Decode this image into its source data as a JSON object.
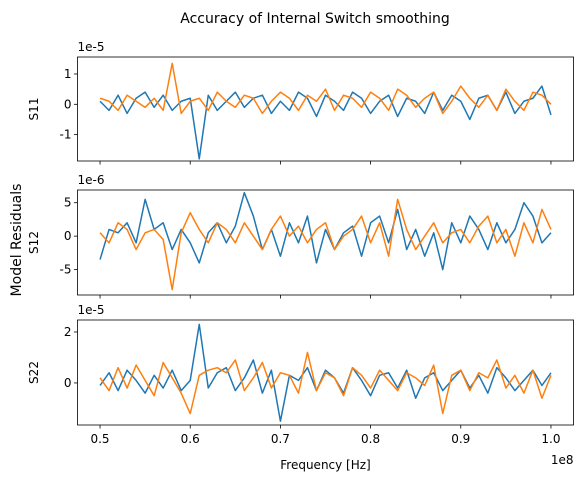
{
  "figure": {
    "title": "Accuracy of Internal Switch smoothing",
    "ylabel": "Model Residuals"
  },
  "chart_data": [
    {
      "type": "line",
      "ylabel": "S11",
      "offset_label": "1e-5",
      "x": [
        0.5,
        0.51,
        0.52,
        0.53,
        0.54,
        0.55,
        0.56,
        0.57,
        0.58,
        0.59,
        0.6,
        0.61,
        0.62,
        0.63,
        0.64,
        0.65,
        0.66,
        0.67,
        0.68,
        0.69,
        0.7,
        0.71,
        0.72,
        0.73,
        0.74,
        0.75,
        0.76,
        0.77,
        0.78,
        0.79,
        0.8,
        0.81,
        0.82,
        0.83,
        0.84,
        0.85,
        0.86,
        0.87,
        0.88,
        0.89,
        0.9,
        0.91,
        0.92,
        0.93,
        0.94,
        0.95,
        0.96,
        0.97,
        0.98,
        0.99,
        1
      ],
      "series": [
        {
          "color": "#1f77b4",
          "values": [
            0.1,
            -0.2,
            0.3,
            -0.3,
            0.2,
            0.4,
            -0.1,
            0.3,
            -0.2,
            0.1,
            0.2,
            -1.8,
            0.3,
            -0.2,
            0.1,
            0.4,
            -0.1,
            0.2,
            0.3,
            -0.3,
            0.1,
            -0.2,
            0.4,
            0.2,
            -0.4,
            0.3,
            0.1,
            -0.2,
            0.4,
            0.2,
            -0.3,
            0.1,
            0.3,
            -0.4,
            0.2,
            0.1,
            -0.3,
            0.4,
            -0.2,
            0.3,
            0.1,
            -0.5,
            0.2,
            0.3,
            -0.2,
            0.4,
            -0.3,
            0.1,
            0.2,
            0.6,
            -0.35
          ]
        },
        {
          "color": "#ff7f0e",
          "values": [
            0.2,
            0.1,
            -0.2,
            0.3,
            0.1,
            -0.1,
            0.2,
            -0.2,
            1.35,
            -0.3,
            0.1,
            0.2,
            -0.2,
            0.4,
            0.1,
            -0.1,
            0.3,
            0.2,
            -0.3,
            0.1,
            0.4,
            0.2,
            -0.2,
            0.3,
            0.1,
            0.5,
            -0.2,
            0.3,
            0.2,
            -0.1,
            0.4,
            0.2,
            -0.2,
            0.5,
            0.3,
            -0.1,
            0.2,
            0.4,
            -0.3,
            0.1,
            0.6,
            0.2,
            -0.1,
            0.3,
            -0.2,
            0.5,
            0.1,
            -0.2,
            0.4,
            0.3,
            0.0
          ]
        }
      ],
      "xlim": [
        0.475,
        1.025
      ],
      "xticks": [
        0.5,
        0.6,
        0.7,
        0.8,
        0.9,
        {
          "value": 1,
          "label": "1.0"
        }
      ],
      "ylim": [
        -1.87,
        1.56
      ],
      "yticks": [
        -1,
        0,
        1
      ]
    },
    {
      "type": "line",
      "ylabel": "S12",
      "offset_label": "1e-6",
      "x": [
        0.5,
        0.51,
        0.52,
        0.53,
        0.54,
        0.55,
        0.56,
        0.57,
        0.58,
        0.59,
        0.6,
        0.61,
        0.62,
        0.63,
        0.64,
        0.65,
        0.66,
        0.67,
        0.68,
        0.69,
        0.7,
        0.71,
        0.72,
        0.73,
        0.74,
        0.75,
        0.76,
        0.77,
        0.78,
        0.79,
        0.8,
        0.81,
        0.82,
        0.83,
        0.84,
        0.85,
        0.86,
        0.87,
        0.88,
        0.89,
        0.9,
        0.91,
        0.92,
        0.93,
        0.94,
        0.95,
        0.96,
        0.97,
        0.98,
        0.99,
        1
      ],
      "series": [
        {
          "color": "#1f77b4",
          "values": [
            -3.5,
            1,
            0.5,
            2,
            -1,
            5.5,
            1,
            2,
            -2,
            1,
            -1,
            -4,
            0.5,
            2,
            -1,
            1.5,
            6.5,
            3,
            -2,
            1,
            -3,
            2,
            -1,
            3,
            -4,
            1,
            -2,
            0.5,
            1.5,
            -3,
            2,
            3,
            -1,
            4,
            -2,
            1,
            -3,
            0.5,
            -5,
            2,
            -1,
            3,
            1,
            -2,
            2,
            -1,
            1,
            5,
            3,
            -1,
            0.5
          ]
        },
        {
          "color": "#ff7f0e",
          "values": [
            0.5,
            -1,
            2,
            1,
            -2,
            0.5,
            1,
            -0.5,
            -8,
            0.5,
            3.5,
            1,
            -1,
            2,
            1,
            -1,
            2,
            0,
            -2,
            1,
            3,
            0,
            1.5,
            -1,
            1,
            2,
            -2,
            0,
            1,
            3,
            -1,
            2,
            -3,
            5.5,
            1,
            -2,
            0,
            2,
            -1,
            0.5,
            1,
            -1,
            1.5,
            3,
            -1,
            1,
            -3,
            2,
            -1,
            4,
            1
          ]
        }
      ],
      "xlim": [
        0.475,
        1.025
      ],
      "xticks": [
        0.5,
        0.6,
        0.7,
        0.8,
        0.9,
        {
          "value": 1,
          "label": "1.0"
        }
      ],
      "ylim": [
        -8.8,
        6.9
      ],
      "yticks": [
        -5,
        0,
        5
      ]
    },
    {
      "type": "line",
      "ylabel": "S22",
      "offset_label": "1e-5",
      "xlabel": "Frequency [Hz]",
      "x_offset_label": "1e8",
      "x": [
        0.5,
        0.51,
        0.52,
        0.53,
        0.54,
        0.55,
        0.56,
        0.57,
        0.58,
        0.59,
        0.6,
        0.61,
        0.62,
        0.63,
        0.64,
        0.65,
        0.66,
        0.67,
        0.68,
        0.69,
        0.7,
        0.71,
        0.72,
        0.73,
        0.74,
        0.75,
        0.76,
        0.77,
        0.78,
        0.79,
        0.8,
        0.81,
        0.82,
        0.83,
        0.84,
        0.85,
        0.86,
        0.87,
        0.88,
        0.89,
        0.9,
        0.91,
        0.92,
        0.93,
        0.94,
        0.95,
        0.96,
        0.97,
        0.98,
        0.99,
        1
      ],
      "series": [
        {
          "color": "#1f77b4",
          "values": [
            -0.1,
            0.4,
            -0.3,
            0.5,
            0.1,
            -0.4,
            0.3,
            -0.2,
            0.5,
            -0.3,
            0.1,
            2.3,
            -0.2,
            0.4,
            0.6,
            -0.3,
            0.2,
            0.9,
            -0.4,
            0.5,
            -1.5,
            0.3,
            0.1,
            0.6,
            -0.3,
            0.5,
            0.2,
            -0.4,
            0.6,
            0.1,
            -0.5,
            0.3,
            0.4,
            -0.2,
            0.5,
            -0.6,
            0.2,
            0.4,
            -0.3,
            0.1,
            0.5,
            -0.2,
            0.3,
            -0.4,
            0.6,
            0.2,
            -0.3,
            0.1,
            0.5,
            -0.1,
            0.4
          ]
        },
        {
          "color": "#ff7f0e",
          "values": [
            0.2,
            -0.3,
            0.6,
            -0.2,
            0.7,
            0.1,
            -0.5,
            0.8,
            0.2,
            -0.4,
            -1.2,
            0.3,
            0.5,
            0.6,
            0.4,
            0.9,
            -0.3,
            0.2,
            0.8,
            -0.2,
            0.4,
            0.3,
            -0.4,
            1.2,
            -0.3,
            0.4,
            0.2,
            -0.5,
            0.6,
            0.3,
            -0.2,
            0.5,
            0.1,
            -0.3,
            0.4,
            0.2,
            -0.1,
            0.7,
            -1.2,
            0.3,
            0.5,
            -0.3,
            0.4,
            0.2,
            0.9,
            -0.2,
            0.3,
            -0.4,
            0.5,
            -0.6,
            0.3
          ]
        }
      ],
      "xlim": [
        0.475,
        1.025
      ],
      "xticks": [
        0.5,
        0.6,
        0.7,
        0.8,
        0.9,
        {
          "value": 1,
          "label": "1.0"
        }
      ],
      "ylim": [
        -1.65,
        2.47
      ],
      "yticks": [
        0,
        2
      ]
    }
  ]
}
